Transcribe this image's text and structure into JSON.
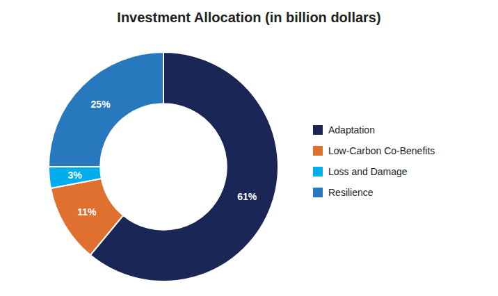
{
  "chart_data": {
    "type": "pie",
    "title": "Investment Allocation (in billion dollars)",
    "categories": [
      "Adaptation",
      "Low-Carbon Co-Benefits",
      "Loss and Damage",
      "Resilience"
    ],
    "values": [
      61,
      11,
      3,
      25
    ],
    "value_labels": [
      "61%",
      "11%",
      "3%",
      "25%"
    ],
    "colors": [
      "#1a2756",
      "#e07030",
      "#00aeef",
      "#2878be"
    ],
    "data_labels": true,
    "legend": "right"
  }
}
